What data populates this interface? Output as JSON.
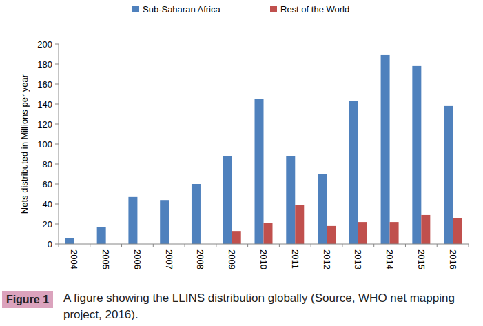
{
  "chart_data": {
    "type": "bar",
    "y_label": "Nets distributed in Millions per year",
    "categories": [
      "2004",
      "2005",
      "2006",
      "2007",
      "2008",
      "2009",
      "2010",
      "2011",
      "2012",
      "2013",
      "2014",
      "2015",
      "2016"
    ],
    "series": [
      {
        "name": "Sub-Saharan Africa",
        "color": "#4f81bd",
        "values": [
          6,
          17,
          47,
          44,
          60,
          88,
          145,
          88,
          70,
          143,
          189,
          178,
          138
        ]
      },
      {
        "name": "Rest of the World",
        "color": "#c0504d",
        "values": [
          null,
          null,
          null,
          null,
          null,
          13,
          21,
          39,
          18,
          22,
          22,
          29,
          26
        ]
      }
    ],
    "ylim": [
      0,
      200
    ],
    "yticks": [
      0,
      20,
      40,
      60,
      80,
      100,
      120,
      140,
      160,
      180,
      200
    ],
    "grid": false,
    "legend": "top",
    "figure_label": "Figure 1",
    "caption": "A figure showing the LLINS distribution globally (Source, WHO net mapping project, 2016)."
  }
}
